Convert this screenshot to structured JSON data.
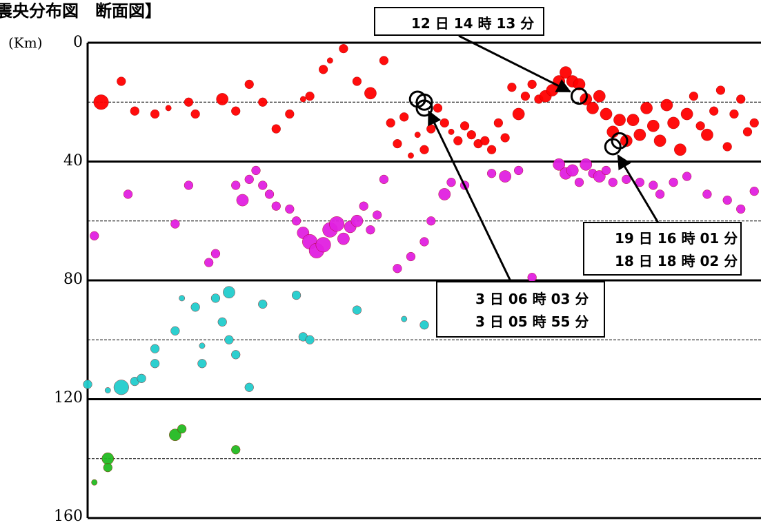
{
  "chart_data": {
    "type": "scatter",
    "title": "震央分布図　断面図】",
    "ylabel": "(Km)",
    "ylim": [
      0,
      160
    ],
    "y_ticks": [
      "0",
      "40",
      "80",
      "120",
      "160"
    ],
    "y_inverted": true,
    "grid": true,
    "colors": {
      "red_0_40": "#ff0000",
      "magenta_40_80": "#e020e0",
      "cyan_80_120": "#22cccc",
      "green_120_160": "#22bb22",
      "selected_ring": "#000000"
    },
    "series": [
      {
        "color_key": "red_0_40",
        "points": [
          [
            2,
            20,
            4
          ],
          [
            5,
            13,
            2
          ],
          [
            7,
            23,
            2
          ],
          [
            10,
            24,
            2
          ],
          [
            12,
            22,
            1
          ],
          [
            15,
            20,
            2
          ],
          [
            16,
            24,
            2
          ],
          [
            20,
            19,
            3
          ],
          [
            22,
            23,
            2
          ],
          [
            24,
            14,
            2
          ],
          [
            26,
            20,
            2
          ],
          [
            28,
            29,
            2
          ],
          [
            30,
            24,
            2
          ],
          [
            32,
            19,
            1
          ],
          [
            33,
            18,
            2
          ],
          [
            35,
            9,
            2
          ],
          [
            36,
            6,
            1
          ],
          [
            38,
            2,
            2
          ],
          [
            40,
            13,
            2
          ],
          [
            42,
            17,
            3
          ],
          [
            44,
            6,
            2
          ],
          [
            45,
            27,
            2
          ],
          [
            46,
            34,
            2
          ],
          [
            47,
            25,
            2
          ],
          [
            48,
            38,
            1
          ],
          [
            49,
            31,
            1
          ],
          [
            50,
            36,
            2
          ],
          [
            51,
            29,
            2
          ],
          [
            52,
            22,
            2
          ],
          [
            53,
            27,
            2
          ],
          [
            54,
            30,
            1
          ],
          [
            55,
            33,
            2
          ],
          [
            56,
            28,
            2
          ],
          [
            57,
            31,
            2
          ],
          [
            58,
            34,
            2
          ],
          [
            59,
            33,
            2
          ],
          [
            60,
            36,
            2
          ],
          [
            61,
            27,
            2
          ],
          [
            62,
            32,
            2
          ],
          [
            63,
            15,
            2
          ],
          [
            64,
            24,
            3
          ],
          [
            65,
            18,
            2
          ],
          [
            66,
            14,
            2
          ],
          [
            67,
            19,
            2
          ],
          [
            68,
            18,
            3
          ],
          [
            69,
            16,
            3
          ],
          [
            70,
            13,
            3
          ],
          [
            71,
            10,
            3
          ],
          [
            72,
            13,
            3
          ],
          [
            73,
            14,
            3
          ],
          [
            74,
            19,
            3
          ],
          [
            75,
            22,
            3
          ],
          [
            76,
            18,
            3
          ],
          [
            77,
            24,
            3
          ],
          [
            78,
            30,
            3
          ],
          [
            79,
            26,
            3
          ],
          [
            80,
            33,
            3
          ],
          [
            81,
            26,
            3
          ],
          [
            82,
            31,
            3
          ],
          [
            83,
            22,
            3
          ],
          [
            84,
            28,
            3
          ],
          [
            85,
            33,
            3
          ],
          [
            86,
            21,
            3
          ],
          [
            87,
            27,
            3
          ],
          [
            88,
            36,
            3
          ],
          [
            89,
            24,
            3
          ],
          [
            90,
            18,
            2
          ],
          [
            91,
            28,
            2
          ],
          [
            92,
            31,
            3
          ],
          [
            93,
            23,
            2
          ],
          [
            94,
            16,
            2
          ],
          [
            95,
            35,
            2
          ],
          [
            96,
            24,
            2
          ],
          [
            97,
            19,
            2
          ],
          [
            98,
            30,
            2
          ],
          [
            99,
            27,
            2
          ]
        ]
      },
      {
        "color_key": "magenta_40_80",
        "points": [
          [
            1,
            65,
            2
          ],
          [
            6,
            51,
            2
          ],
          [
            13,
            61,
            2
          ],
          [
            15,
            48,
            2
          ],
          [
            18,
            74,
            2
          ],
          [
            19,
            71,
            2
          ],
          [
            22,
            48,
            2
          ],
          [
            23,
            53,
            3
          ],
          [
            24,
            46,
            2
          ],
          [
            25,
            43,
            2
          ],
          [
            26,
            48,
            2
          ],
          [
            27,
            51,
            2
          ],
          [
            28,
            55,
            2
          ],
          [
            30,
            56,
            2
          ],
          [
            31,
            60,
            2
          ],
          [
            32,
            64,
            3
          ],
          [
            33,
            67,
            4
          ],
          [
            34,
            70,
            4
          ],
          [
            35,
            68,
            4
          ],
          [
            36,
            63,
            4
          ],
          [
            37,
            61,
            4
          ],
          [
            38,
            66,
            3
          ],
          [
            39,
            62,
            3
          ],
          [
            40,
            60,
            3
          ],
          [
            41,
            55,
            2
          ],
          [
            42,
            63,
            2
          ],
          [
            43,
            58,
            2
          ],
          [
            44,
            46,
            2
          ],
          [
            46,
            76,
            2
          ],
          [
            48,
            72,
            2
          ],
          [
            50,
            67,
            2
          ],
          [
            51,
            60,
            2
          ],
          [
            53,
            51,
            3
          ],
          [
            54,
            47,
            2
          ],
          [
            56,
            48,
            2
          ],
          [
            60,
            44,
            2
          ],
          [
            62,
            45,
            3
          ],
          [
            64,
            43,
            2
          ],
          [
            66,
            79,
            2
          ],
          [
            70,
            41,
            3
          ],
          [
            71,
            44,
            3
          ],
          [
            72,
            43,
            3
          ],
          [
            73,
            47,
            2
          ],
          [
            74,
            41,
            3
          ],
          [
            75,
            44,
            2
          ],
          [
            76,
            45,
            3
          ],
          [
            77,
            43,
            2
          ],
          [
            78,
            47,
            2
          ],
          [
            80,
            46,
            2
          ],
          [
            82,
            47,
            2
          ],
          [
            84,
            48,
            2
          ],
          [
            85,
            51,
            2
          ],
          [
            87,
            47,
            2
          ],
          [
            89,
            45,
            2
          ],
          [
            92,
            51,
            2
          ],
          [
            95,
            53,
            2
          ],
          [
            97,
            56,
            2
          ],
          [
            99,
            50,
            2
          ]
        ]
      },
      {
        "color_key": "cyan_80_120",
        "points": [
          [
            0,
            115,
            2
          ],
          [
            3,
            117,
            1
          ],
          [
            5,
            116,
            4
          ],
          [
            7,
            114,
            2
          ],
          [
            8,
            113,
            2
          ],
          [
            10,
            108,
            2
          ],
          [
            10,
            103,
            2
          ],
          [
            13,
            97,
            2
          ],
          [
            14,
            86,
            1
          ],
          [
            16,
            89,
            2
          ],
          [
            17,
            102,
            1
          ],
          [
            17,
            108,
            2
          ],
          [
            19,
            86,
            2
          ],
          [
            20,
            94,
            2
          ],
          [
            21,
            100,
            2
          ],
          [
            21,
            84,
            3
          ],
          [
            22,
            105,
            2
          ],
          [
            24,
            116,
            2
          ],
          [
            26,
            88,
            2
          ],
          [
            31,
            85,
            2
          ],
          [
            32,
            99,
            2
          ],
          [
            33,
            100,
            2
          ],
          [
            40,
            90,
            2
          ],
          [
            47,
            93,
            1
          ],
          [
            50,
            95,
            2
          ]
        ]
      },
      {
        "color_key": "green_120_160",
        "points": [
          [
            1,
            148,
            1
          ],
          [
            3,
            140,
            3
          ],
          [
            3,
            143,
            2
          ],
          [
            13,
            132,
            3
          ],
          [
            14,
            130,
            2
          ],
          [
            22,
            137,
            2
          ]
        ]
      }
    ],
    "selected_events": [
      {
        "x": 49,
        "y": 19
      },
      {
        "x": 50,
        "y": 20
      },
      {
        "x": 50,
        "y": 22
      },
      {
        "x": 73,
        "y": 18
      },
      {
        "x": 79,
        "y": 33
      },
      {
        "x": 78,
        "y": 35
      }
    ],
    "annotations": [
      {
        "lines": [
          "12 日 14 時 13 分"
        ],
        "targets": [
          3
        ]
      },
      {
        "lines": [
          "19 日 16 時 01 分",
          "18 日 18 時 02 分"
        ],
        "targets": [
          5
        ]
      },
      {
        "lines": [
          "3 日 06 時 03 分",
          "3 日 05 時 55 分"
        ],
        "targets": [
          1
        ]
      }
    ]
  }
}
